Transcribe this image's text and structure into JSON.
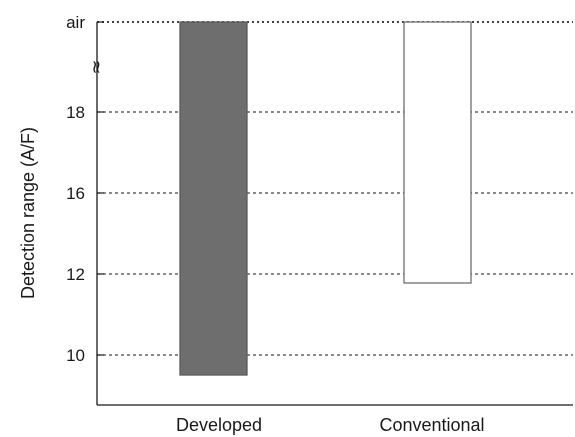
{
  "chart_data": {
    "type": "bar",
    "subtype": "floating-range",
    "ylabel": "Detection range (A/F)",
    "xlabel": "",
    "title": "",
    "categories": [
      "Developed",
      "Conventional"
    ],
    "ranges": [
      {
        "category": "Developed",
        "low": 9.5,
        "high": "air",
        "fill": "#6e6e6e",
        "stroke": "#5a5a5a"
      },
      {
        "category": "Conventional",
        "low": 11.8,
        "high": "air",
        "fill": "#ffffff",
        "stroke": "#6e6e6e"
      }
    ],
    "y_ticks": [
      "10",
      "12",
      "16",
      "18",
      "air"
    ],
    "y_tick_values": [
      10,
      12,
      16,
      18,
      "air"
    ],
    "axis_break": "between 18 and air",
    "axis_break_symbol": "≈",
    "grid": "horizontal dashed lines at each tick"
  }
}
